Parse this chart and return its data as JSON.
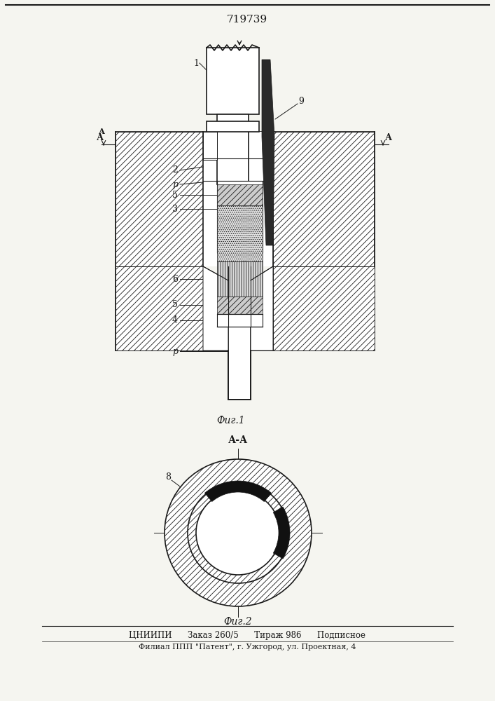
{
  "patent_number": "719739",
  "fig1_caption": "Фиг.1",
  "fig2_caption": "Фиг.2",
  "section_label": "А-А",
  "footer_line1": "ЦНИИПИ      Заказ 260/5      Тираж 986      Подписное",
  "footer_line2": "Филиал ППП \"Патент\", г. Ужгород, ул. Проектная, 4",
  "bg_color": "#f5f5f0",
  "line_color": "#1a1a1a"
}
